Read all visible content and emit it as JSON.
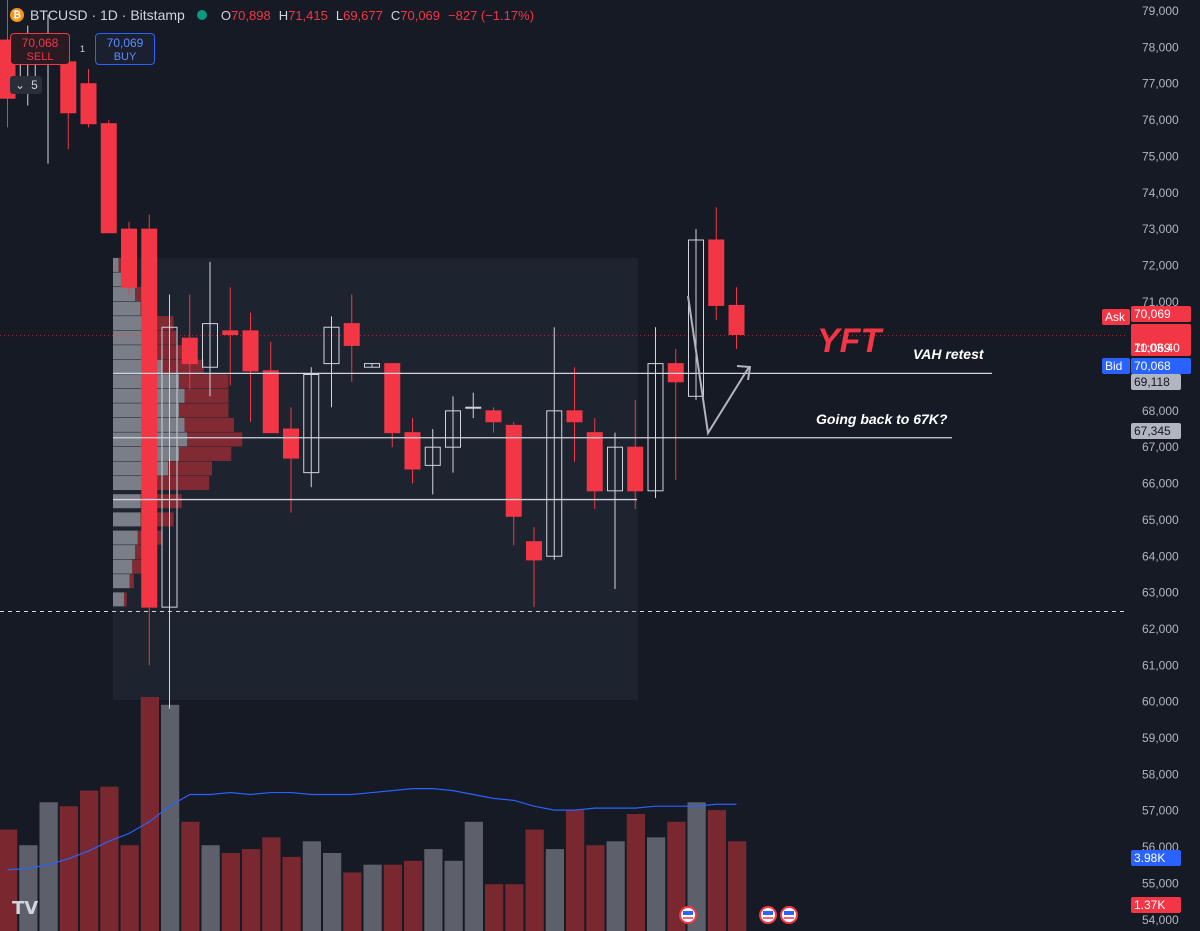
{
  "header": {
    "symbol": "BTCUSD · 1D · Bitstamp",
    "coin_glyph": "₿",
    "o_label": "O",
    "o": "70,898",
    "h_label": "H",
    "h": "71,415",
    "l_label": "L",
    "l": "69,677",
    "c_label": "C",
    "c": "70,069",
    "change": "−827 (−1.17%)"
  },
  "trade": {
    "sell_price": "70,068",
    "sell_label": "SELL",
    "buy_price": "70,069",
    "buy_label": "BUY",
    "spread": "1",
    "collapse_count": "5"
  },
  "logo": "TV",
  "colors": {
    "background": "#161a25",
    "up": "#ffffff",
    "down": "#f23645",
    "ask": "#f23645",
    "bid": "#2962ff",
    "volume_ma": "#2962ff"
  },
  "chart_data": {
    "type": "candlestick",
    "symbol": "BTCUSD",
    "interval": "1D",
    "exchange": "Bitstamp",
    "ylim": [
      54000,
      79300
    ],
    "y_ticks": [
      "79,000",
      "78,000",
      "77,000",
      "76,000",
      "75,000",
      "74,000",
      "73,000",
      "72,000",
      "71,000",
      "70,000",
      "69,000",
      "68,000",
      "67,000",
      "66,000",
      "65,000",
      "64,000",
      "63,000",
      "62,000",
      "61,000",
      "60,000",
      "59,000",
      "58,000",
      "57,000",
      "56,000",
      "55,000",
      "54,000"
    ],
    "candles": [
      {
        "o": 78200,
        "h": 79300,
        "l": 75800,
        "c": 76600
      },
      {
        "o": 76800,
        "h": 78600,
        "l": 76400,
        "c": 77600
      },
      {
        "o": 77800,
        "h": 78900,
        "l": 74800,
        "c": 78200
      },
      {
        "o": 77600,
        "h": 77900,
        "l": 75200,
        "c": 76200
      },
      {
        "o": 77000,
        "h": 77400,
        "l": 75800,
        "c": 75900
      },
      {
        "o": 75900,
        "h": 76000,
        "l": 72900,
        "c": 72900
      },
      {
        "o": 73000,
        "h": 73200,
        "l": 71200,
        "c": 71400
      },
      {
        "o": 73000,
        "h": 73400,
        "l": 61000,
        "c": 62600
      },
      {
        "o": 62600,
        "h": 71200,
        "l": 59800,
        "c": 70300
      },
      {
        "o": 70000,
        "h": 71200,
        "l": 68600,
        "c": 69300
      },
      {
        "o": 69200,
        "h": 72100,
        "l": 68400,
        "c": 70400
      },
      {
        "o": 70200,
        "h": 71400,
        "l": 68700,
        "c": 70100
      },
      {
        "o": 70200,
        "h": 70700,
        "l": 67700,
        "c": 69100
      },
      {
        "o": 69100,
        "h": 69900,
        "l": 67400,
        "c": 67400
      },
      {
        "o": 67500,
        "h": 68100,
        "l": 65200,
        "c": 66700
      },
      {
        "o": 66300,
        "h": 69200,
        "l": 65900,
        "c": 69000
      },
      {
        "o": 69300,
        "h": 70600,
        "l": 68100,
        "c": 70300
      },
      {
        "o": 70400,
        "h": 71200,
        "l": 68800,
        "c": 69800
      },
      {
        "o": 69200,
        "h": 69300,
        "l": 69200,
        "c": 69300
      },
      {
        "o": 69300,
        "h": 69300,
        "l": 67000,
        "c": 67400
      },
      {
        "o": 67400,
        "h": 67800,
        "l": 66000,
        "c": 66400
      },
      {
        "o": 66500,
        "h": 67500,
        "l": 65700,
        "c": 67000
      },
      {
        "o": 67000,
        "h": 68400,
        "l": 66300,
        "c": 68000
      },
      {
        "o": 68100,
        "h": 68500,
        "l": 67800,
        "c": 68100
      },
      {
        "o": 68000,
        "h": 68100,
        "l": 67400,
        "c": 67700
      },
      {
        "o": 67600,
        "h": 67700,
        "l": 64300,
        "c": 65100
      },
      {
        "o": 64400,
        "h": 64800,
        "l": 62600,
        "c": 63900
      },
      {
        "o": 64000,
        "h": 70300,
        "l": 63900,
        "c": 68000
      },
      {
        "o": 68000,
        "h": 69200,
        "l": 66600,
        "c": 67700
      },
      {
        "o": 67400,
        "h": 67800,
        "l": 65300,
        "c": 65800
      },
      {
        "o": 65800,
        "h": 67400,
        "l": 63100,
        "c": 67000
      },
      {
        "o": 67000,
        "h": 68300,
        "l": 65300,
        "c": 65800
      },
      {
        "o": 65800,
        "h": 70300,
        "l": 65600,
        "c": 69300
      },
      {
        "o": 69300,
        "h": 69700,
        "l": 66100,
        "c": 68800
      },
      {
        "o": 68400,
        "h": 73000,
        "l": 68300,
        "c": 72700
      },
      {
        "o": 72700,
        "h": 73600,
        "l": 70500,
        "c": 70900
      },
      {
        "o": 70900,
        "h": 71400,
        "l": 69700,
        "c": 70100
      }
    ],
    "volume_values": [
      2.6,
      2.2,
      3.3,
      3.2,
      3.6,
      3.7,
      2.2,
      6.0,
      5.8,
      2.8,
      2.2,
      2.0,
      2.1,
      2.4,
      1.9,
      2.3,
      2.0,
      1.5,
      1.7,
      1.7,
      1.8,
      2.1,
      1.8,
      2.8,
      1.2,
      1.2,
      2.6,
      2.1,
      3.1,
      2.2,
      2.3,
      3.0,
      2.4,
      2.8,
      3.3,
      3.1,
      2.3
    ],
    "volume_ma": [
      1.57,
      1.6,
      1.7,
      1.85,
      2.05,
      2.3,
      2.5,
      2.8,
      3.2,
      3.5,
      3.5,
      3.55,
      3.5,
      3.55,
      3.55,
      3.5,
      3.5,
      3.5,
      3.55,
      3.6,
      3.65,
      3.65,
      3.6,
      3.5,
      3.4,
      3.35,
      3.2,
      3.1,
      3.1,
      3.15,
      3.15,
      3.15,
      3.2,
      3.2,
      3.2,
      3.25,
      3.25
    ],
    "volume_labels": {
      "ma": "3.98K",
      "current": "1.37K"
    },
    "volume_profile": {
      "price_from": 62500,
      "price_to": 72200,
      "rows": [
        {
          "p": 62800,
          "up": 0.2,
          "dn": 0.05
        },
        {
          "p": 63300,
          "up": 0.3,
          "dn": 0.08
        },
        {
          "p": 63700,
          "up": 0.35,
          "dn": 0.25
        },
        {
          "p": 64100,
          "up": 0.4,
          "dn": 0.35
        },
        {
          "p": 64500,
          "up": 0.45,
          "dn": 0.45
        },
        {
          "p": 65000,
          "up": 0.5,
          "dn": 0.6
        },
        {
          "p": 65500,
          "up": 0.5,
          "dn": 0.75
        },
        {
          "p": 66000,
          "up": 0.8,
          "dn": 0.95
        },
        {
          "p": 66400,
          "up": 1.0,
          "dn": 0.8
        },
        {
          "p": 66800,
          "up": 1.2,
          "dn": 0.95
        },
        {
          "p": 67200,
          "up": 1.35,
          "dn": 1.0
        },
        {
          "p": 67600,
          "up": 1.3,
          "dn": 0.9
        },
        {
          "p": 68000,
          "up": 1.2,
          "dn": 0.9
        },
        {
          "p": 68400,
          "up": 1.3,
          "dn": 0.8
        },
        {
          "p": 68800,
          "up": 1.2,
          "dn": 0.9
        },
        {
          "p": 69200,
          "up": 0.9,
          "dn": 0.75
        },
        {
          "p": 69600,
          "up": 0.6,
          "dn": 0.9
        },
        {
          "p": 70000,
          "up": 0.55,
          "dn": 0.6
        },
        {
          "p": 70400,
          "up": 0.6,
          "dn": 0.5
        },
        {
          "p": 70800,
          "up": 0.5,
          "dn": 0.3
        },
        {
          "p": 71200,
          "up": 0.4,
          "dn": 0.25
        },
        {
          "p": 71600,
          "up": 0.2,
          "dn": 0.1
        },
        {
          "p": 72000,
          "up": 0.1,
          "dn": 0.05
        }
      ]
    },
    "levels": [
      {
        "price": 69030,
        "label": "VAH retest"
      },
      {
        "price": 67260,
        "label": "Going back to 67K?"
      },
      {
        "price": 65560,
        "label": ""
      }
    ],
    "dashed_level": 62480,
    "annotation": "YFT",
    "price_labels": {
      "ask_tag": "Ask",
      "ask": "70,069",
      "last": "70,069",
      "countdown": "11:03:40",
      "bid_tag": "Bid",
      "bid": "70,068",
      "level_1": "69,118",
      "level_2": "67,345"
    }
  }
}
